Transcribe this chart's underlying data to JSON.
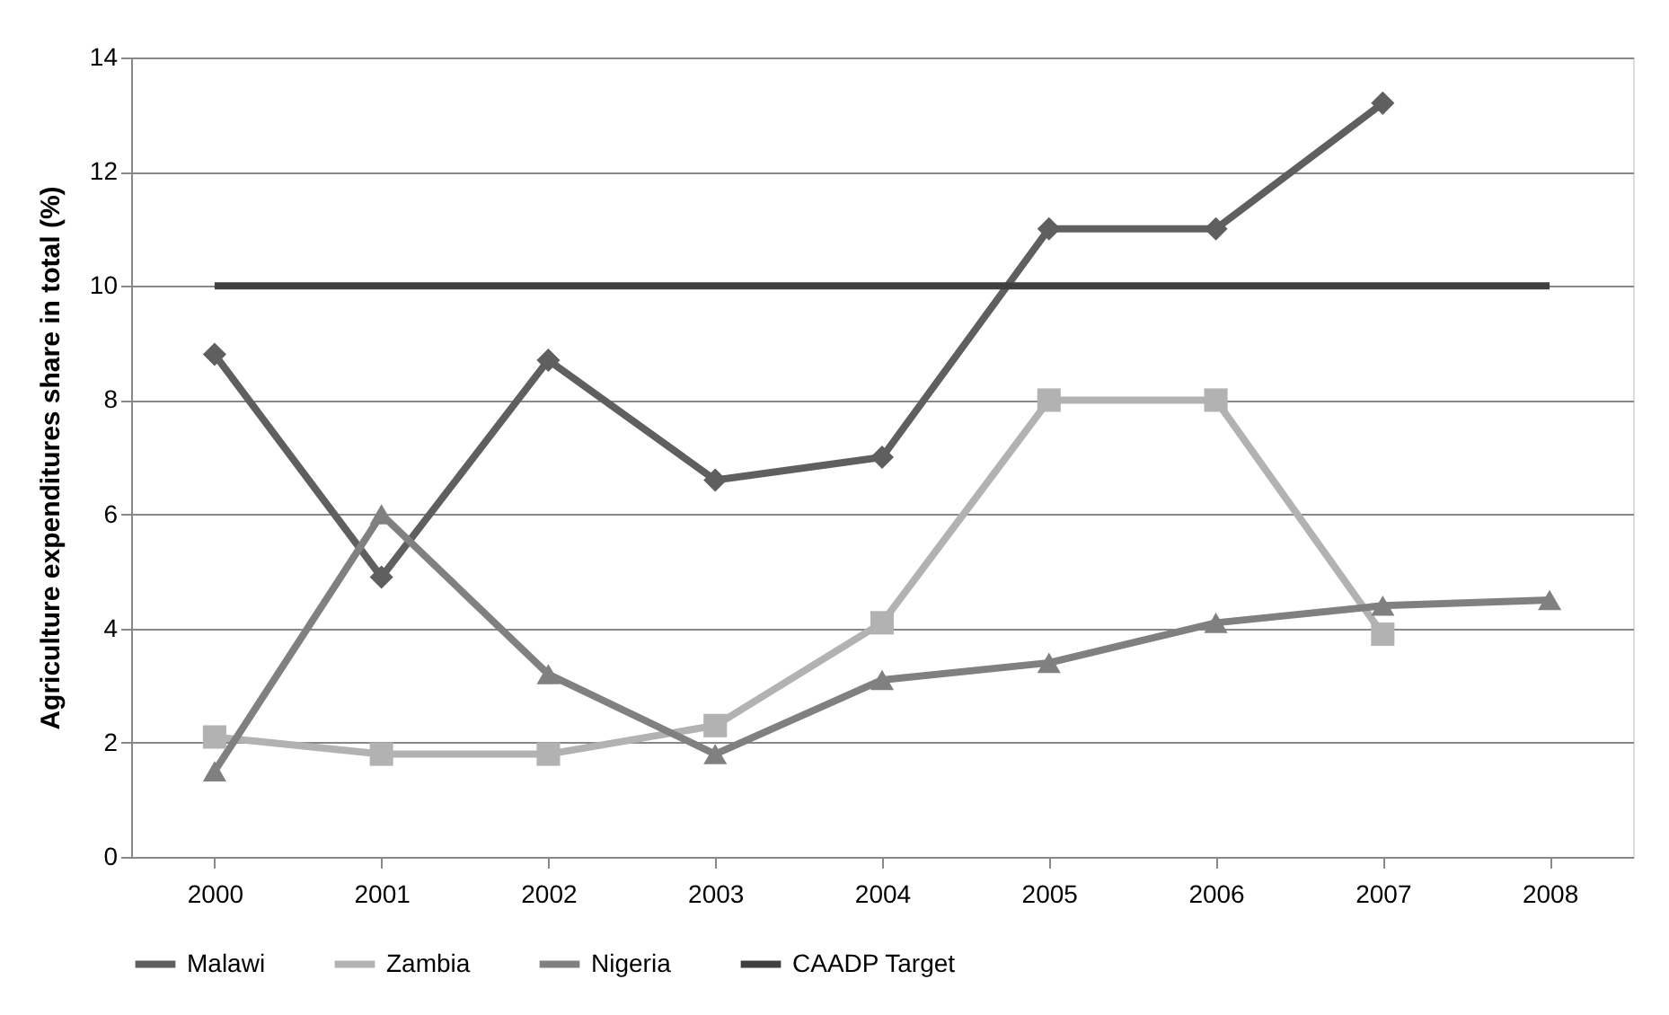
{
  "chart_data": {
    "type": "line",
    "ylabel": "Agriculture expenditures share in total (%)",
    "categories": [
      "2000",
      "2001",
      "2002",
      "2003",
      "2004",
      "2005",
      "2006",
      "2007",
      "2008"
    ],
    "ylim": [
      0,
      14
    ],
    "yticks": [
      0,
      2,
      4,
      6,
      8,
      10,
      12,
      14
    ],
    "grid": "y",
    "legend": "bottom",
    "line_style": "solid",
    "series": [
      {
        "name": "Malawi",
        "color": "#5f5f5f",
        "marker": "diamond",
        "values": [
          8.8,
          4.9,
          8.7,
          6.6,
          7.0,
          11.0,
          11.0,
          13.2,
          null
        ]
      },
      {
        "name": "Zambia",
        "color": "#b2b2b2",
        "marker": "square",
        "values": [
          2.1,
          1.8,
          1.8,
          2.3,
          4.1,
          8.0,
          8.0,
          3.9,
          null
        ]
      },
      {
        "name": "Nigeria",
        "color": "#808080",
        "marker": "triangle",
        "values": [
          1.5,
          6.0,
          3.2,
          1.8,
          3.1,
          3.4,
          4.1,
          4.4,
          4.5
        ]
      },
      {
        "name": "CAADP Target",
        "color": "#404040",
        "marker": "none",
        "values": [
          10,
          10,
          10,
          10,
          10,
          10,
          10,
          10,
          10
        ]
      }
    ]
  }
}
